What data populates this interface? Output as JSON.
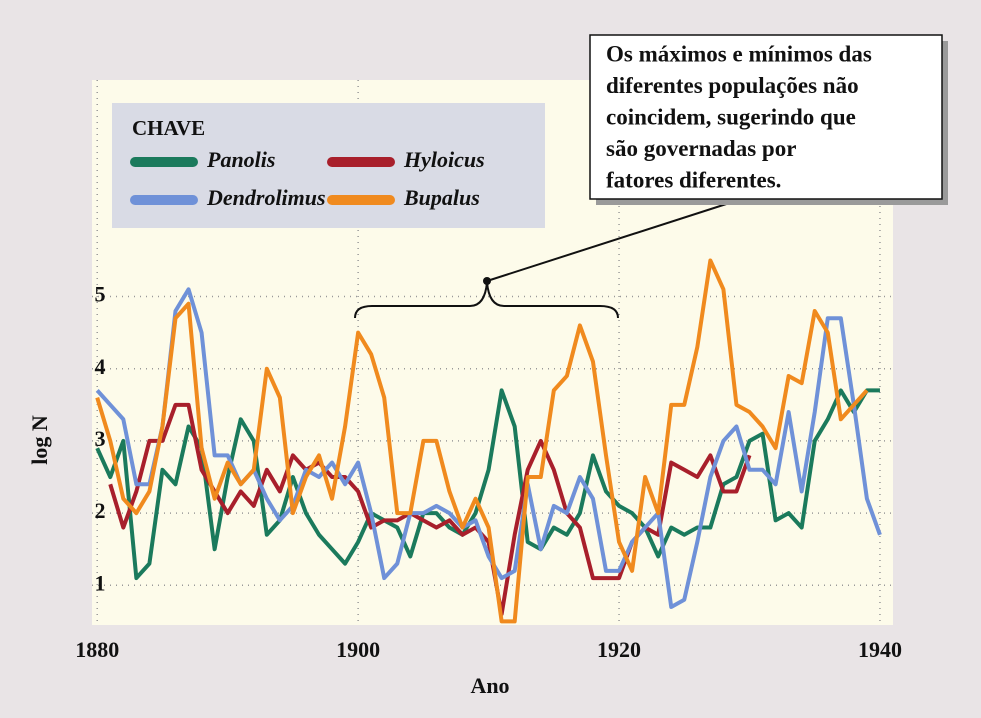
{
  "chart_data": {
    "type": "line",
    "xlabel": "Ano",
    "ylabel": "log N",
    "legend_title": "CHAVE",
    "annotation": [
      "Os máximos e mínimos das",
      "diferentes populações não",
      "coincidem, sugerindo que",
      "são governadas por",
      "fatores diferentes."
    ],
    "x": [
      1880,
      1881,
      1882,
      1883,
      1884,
      1885,
      1886,
      1887,
      1888,
      1889,
      1890,
      1891,
      1892,
      1893,
      1894,
      1895,
      1896,
      1897,
      1898,
      1899,
      1900,
      1901,
      1902,
      1903,
      1904,
      1905,
      1906,
      1907,
      1908,
      1909,
      1910,
      1911,
      1912,
      1913,
      1914,
      1915,
      1916,
      1917,
      1918,
      1919,
      1920,
      1921,
      1922,
      1923,
      1924,
      1925,
      1926,
      1927,
      1928,
      1929,
      1930,
      1931,
      1932,
      1933,
      1934,
      1935,
      1936,
      1937,
      1938,
      1939,
      1940
    ],
    "series": [
      {
        "name": "Panolis",
        "color": "#1b7a5c",
        "values": [
          2.9,
          2.5,
          3.0,
          1.1,
          1.3,
          2.6,
          2.4,
          3.2,
          2.9,
          1.5,
          2.5,
          3.3,
          3.0,
          1.7,
          1.9,
          2.5,
          2.0,
          1.7,
          1.5,
          1.3,
          1.6,
          2.0,
          1.9,
          1.8,
          1.4,
          2.0,
          2.0,
          1.8,
          1.7,
          2.0,
          2.6,
          3.7,
          3.2,
          1.6,
          1.5,
          1.8,
          1.7,
          2.0,
          2.8,
          2.3,
          2.1,
          2.0,
          1.8,
          1.4,
          1.8,
          1.7,
          1.8,
          1.8,
          2.4,
          2.5,
          3.0,
          3.1,
          1.9,
          2.0,
          1.8,
          3.0,
          3.3,
          3.7,
          3.4,
          3.7,
          3.7
        ]
      },
      {
        "name": "Hyloicus",
        "color": "#a81f2b",
        "values": [
          null,
          2.4,
          1.8,
          2.3,
          3.0,
          3.0,
          3.5,
          3.5,
          2.6,
          2.3,
          2.0,
          2.3,
          2.1,
          2.6,
          2.3,
          2.8,
          2.6,
          2.7,
          2.5,
          2.5,
          2.3,
          1.8,
          1.9,
          1.9,
          2.0,
          1.9,
          1.8,
          1.9,
          1.7,
          1.8,
          1.6,
          0.6,
          1.7,
          2.6,
          3.0,
          2.6,
          2.0,
          1.8,
          1.1,
          1.1,
          1.1,
          1.6,
          1.8,
          1.7,
          2.7,
          2.6,
          2.5,
          2.8,
          2.3,
          2.3,
          2.8,
          null,
          null,
          null,
          null,
          null,
          null,
          null,
          null,
          null,
          null
        ]
      },
      {
        "name": "Dendrolimus",
        "color": "#6f91d8",
        "values": [
          3.7,
          3.5,
          3.3,
          2.4,
          2.4,
          3.2,
          4.8,
          5.1,
          4.5,
          2.8,
          2.8,
          2.4,
          2.6,
          2.2,
          1.9,
          2.1,
          2.6,
          2.5,
          2.7,
          2.4,
          2.7,
          2.0,
          1.1,
          1.3,
          2.0,
          2.0,
          2.1,
          2.0,
          1.8,
          1.9,
          1.4,
          1.1,
          1.2,
          2.4,
          1.5,
          2.1,
          2.0,
          2.5,
          2.2,
          1.2,
          1.2,
          1.6,
          1.8,
          2.0,
          0.7,
          0.8,
          1.6,
          2.5,
          3.0,
          3.2,
          2.6,
          2.6,
          2.4,
          3.4,
          2.3,
          3.4,
          4.7,
          4.7,
          3.5,
          2.2,
          1.7
        ]
      },
      {
        "name": "Bupalus",
        "color": "#f08a1e",
        "values": [
          3.6,
          3.0,
          2.2,
          2.0,
          2.3,
          3.2,
          4.7,
          4.9,
          2.9,
          2.2,
          2.7,
          2.4,
          2.6,
          4.0,
          3.6,
          2.0,
          2.5,
          2.8,
          2.2,
          3.2,
          4.5,
          4.2,
          3.6,
          2.0,
          2.0,
          3.0,
          3.0,
          2.3,
          1.8,
          2.2,
          1.8,
          0.5,
          0.5,
          2.5,
          2.5,
          3.7,
          3.9,
          4.6,
          4.1,
          2.8,
          1.6,
          1.2,
          2.5,
          2.0,
          3.5,
          3.5,
          4.3,
          5.5,
          5.1,
          3.5,
          3.4,
          3.2,
          2.9,
          3.9,
          3.8,
          4.8,
          4.5,
          3.3,
          3.5,
          3.7,
          null
        ]
      }
    ],
    "xlim": [
      1879.6,
      1941
    ],
    "xticks": [
      1880,
      1900,
      1920,
      1940
    ],
    "ylim": [
      0.45,
      8
    ],
    "yticks": [
      1,
      2,
      3,
      4,
      5
    ],
    "grid": true
  }
}
